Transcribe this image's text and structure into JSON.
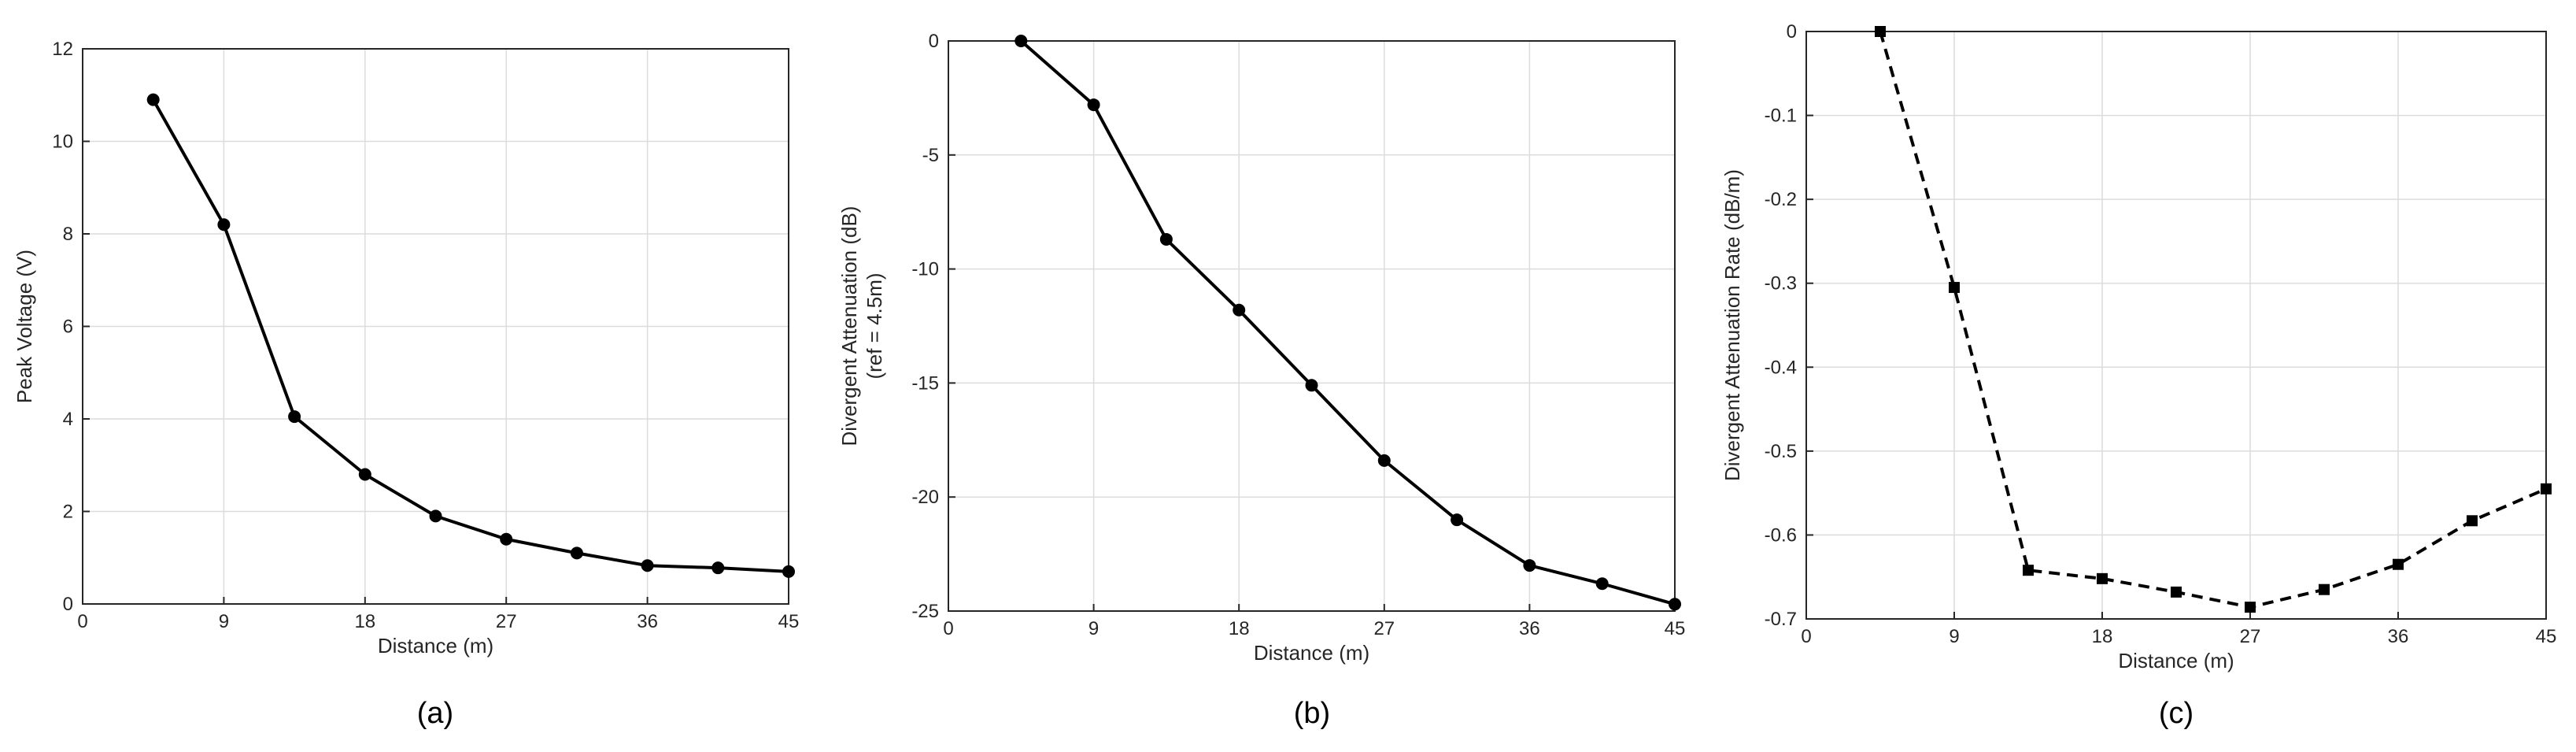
{
  "chart_data": [
    {
      "type": "line",
      "caption": "(a)",
      "xlabel": "Distance (m)",
      "ylabel": "Peak Voltage (V)",
      "xlim": [
        0,
        45
      ],
      "ylim": [
        0,
        12
      ],
      "xticks": [
        0,
        9,
        18,
        27,
        36,
        45
      ],
      "yticks": [
        0,
        2,
        4,
        6,
        8,
        10,
        12
      ],
      "grid": true,
      "line_style": "solid",
      "marker": "circle",
      "x": [
        4.5,
        9,
        13.5,
        18,
        22.5,
        27,
        31.5,
        36,
        40.5,
        45
      ],
      "series": [
        {
          "values": [
            10.9,
            8.2,
            4.05,
            2.8,
            1.9,
            1.4,
            1.1,
            0.83,
            0.78,
            0.7
          ]
        }
      ]
    },
    {
      "type": "line",
      "caption": "(b)",
      "xlabel": "Distance (m)",
      "ylabel": "Divergent Attenuation (dB)",
      "ylabel2": "(ref = 4.5m)",
      "xlim": [
        0,
        45
      ],
      "ylim": [
        -25,
        0
      ],
      "xticks": [
        0,
        9,
        18,
        27,
        36,
        45
      ],
      "yticks": [
        0,
        -5,
        -10,
        -15,
        -20,
        -25
      ],
      "grid": true,
      "line_style": "solid",
      "marker": "circle",
      "x": [
        4.5,
        9,
        13.5,
        18,
        22.5,
        27,
        31.5,
        36,
        40.5,
        45
      ],
      "series": [
        {
          "values": [
            0,
            -2.8,
            -8.7,
            -11.8,
            -15.1,
            -18.4,
            -21.0,
            -23.0,
            -23.8,
            -24.7
          ]
        }
      ]
    },
    {
      "type": "line",
      "caption": "(c)",
      "xlabel": "Distance (m)",
      "ylabel": "Divergent Attenuation Rate (dB/m)",
      "xlim": [
        0,
        45
      ],
      "ylim": [
        -0.7,
        0
      ],
      "xticks": [
        0,
        9,
        18,
        27,
        36,
        45
      ],
      "yticks": [
        0,
        -0.1,
        -0.2,
        -0.3,
        -0.4,
        -0.5,
        -0.6,
        -0.7
      ],
      "grid": true,
      "line_style": "dashed",
      "marker": "square",
      "x": [
        4.5,
        9,
        13.5,
        18,
        22.5,
        27,
        31.5,
        36,
        40.5,
        45
      ],
      "series": [
        {
          "values": [
            0,
            -0.305,
            -0.642,
            -0.652,
            -0.668,
            -0.686,
            -0.665,
            -0.635,
            -0.583,
            -0.545
          ]
        }
      ]
    }
  ],
  "colors": {
    "line": "#000000",
    "grid": "#dcdcdc",
    "axis": "#262626"
  }
}
